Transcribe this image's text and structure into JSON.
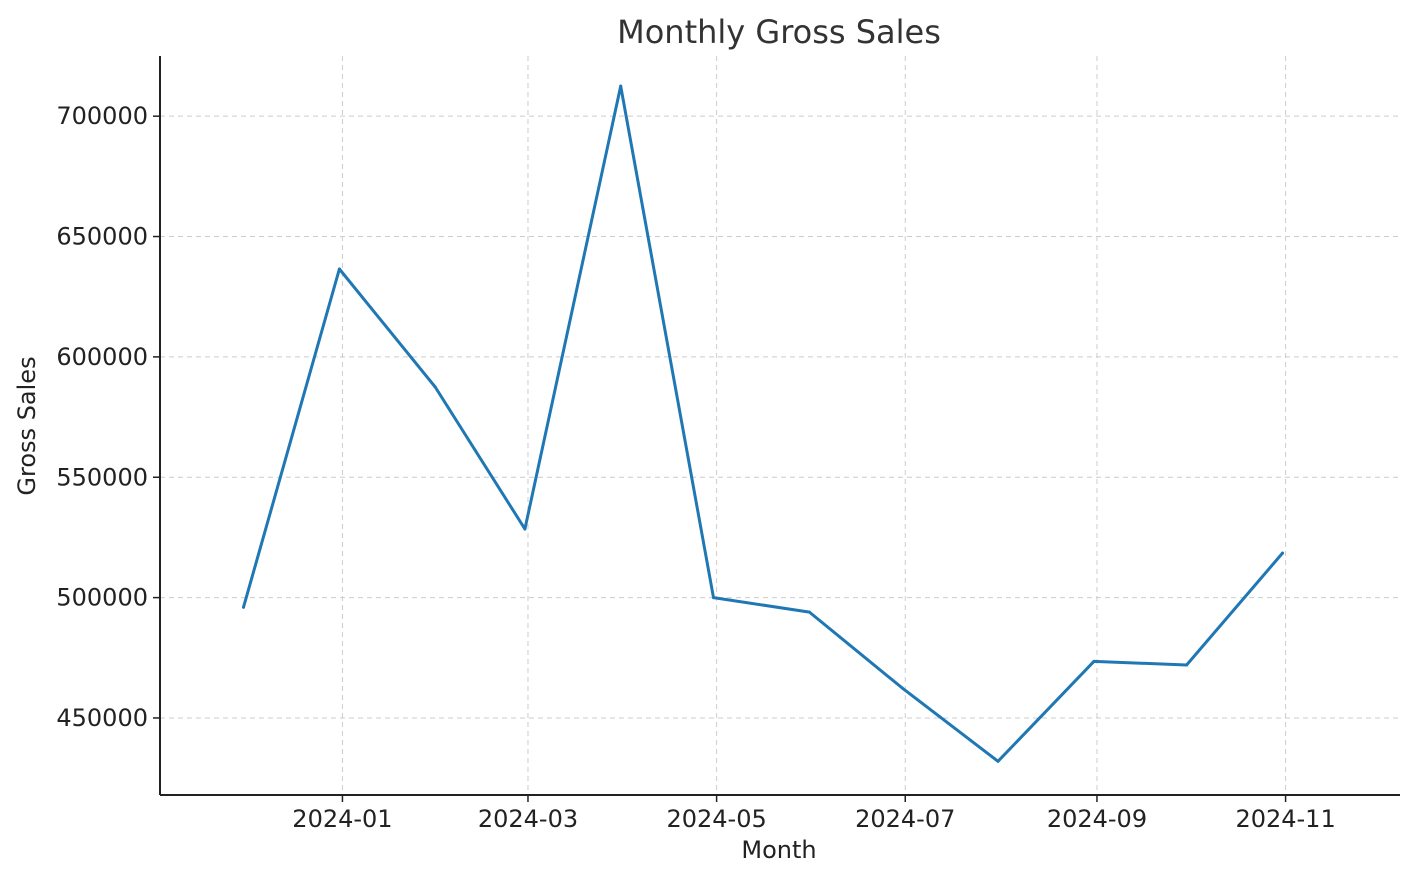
{
  "chart_data": {
    "type": "line",
    "title": "Monthly Gross Sales",
    "xlabel": "Month",
    "ylabel": "Gross Sales",
    "x_axis": {
      "kind": "date",
      "range": [
        "2023-11-03",
        "2024-12-08"
      ],
      "ticks": [
        "2024-01-01",
        "2024-03-01",
        "2024-05-01",
        "2024-07-01",
        "2024-09-01",
        "2024-11-01"
      ],
      "tick_labels": [
        "2024-01",
        "2024-03",
        "2024-05",
        "2024-07",
        "2024-09",
        "2024-11"
      ]
    },
    "y_axis": {
      "range": [
        418000,
        725000
      ],
      "ticks": [
        450000,
        500000,
        550000,
        600000,
        650000,
        700000
      ],
      "tick_labels": [
        "450000",
        "500000",
        "550000",
        "600000",
        "650000",
        "700000"
      ]
    },
    "grid": true,
    "legend": false,
    "x": [
      "2023-11-30",
      "2023-12-31",
      "2024-01-31",
      "2024-02-29",
      "2024-03-31",
      "2024-04-30",
      "2024-05-31",
      "2024-06-30",
      "2024-07-31",
      "2024-08-31",
      "2024-09-30",
      "2024-10-31"
    ],
    "series": [
      {
        "color": "#1f77b4",
        "values": [
          496000,
          636500,
          587500,
          528500,
          712500,
          500000,
          494000,
          462500,
          432000,
          473500,
          472000,
          518500
        ]
      }
    ]
  }
}
